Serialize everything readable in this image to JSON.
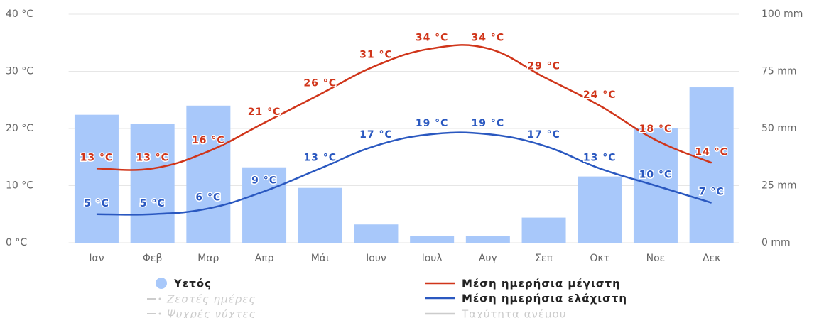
{
  "chart_data": {
    "type": "bar",
    "categories": [
      "Ιαν",
      "Φεβ",
      "Μαρ",
      "Απρ",
      "Μάι",
      "Ιουν",
      "Ιουλ",
      "Αυγ",
      "Σεπ",
      "Οκτ",
      "Νοε",
      "Δεκ"
    ],
    "ylim": [
      0,
      40
    ],
    "yticks": [
      {
        "value": 0,
        "label": "0 °C"
      },
      {
        "value": 10,
        "label": "10 °C"
      },
      {
        "value": 20,
        "label": "20 °C"
      },
      {
        "value": 30,
        "label": "30 °C"
      },
      {
        "value": 40,
        "label": "40 °C"
      }
    ],
    "y2lim": [
      0,
      100
    ],
    "y2ticks": [
      {
        "value": 0,
        "label": "0 mm"
      },
      {
        "value": 25,
        "label": "25 mm"
      },
      {
        "value": 50,
        "label": "50 mm"
      },
      {
        "value": 75,
        "label": "75 mm"
      },
      {
        "value": 100,
        "label": "100 mm"
      }
    ],
    "grid": true,
    "series": [
      {
        "name": "Υετός",
        "type": "bar",
        "axis": "y2",
        "color": "#a8c8fa",
        "values": [
          56,
          52,
          60,
          33,
          24,
          8,
          3,
          3,
          11,
          29,
          50,
          68
        ]
      },
      {
        "name": "Μέση ημερήσια μέγιστη",
        "type": "line",
        "color": "#d0351a",
        "values": [
          13,
          13,
          16,
          21,
          26,
          31,
          34,
          34,
          29,
          24,
          18,
          14
        ],
        "value_labels": [
          "13 °C",
          "13 °C",
          "16 °C",
          "21 °C",
          "26 °C",
          "31 °C",
          "34 °C",
          "34 °C",
          "29 °C",
          "24 °C",
          "18 °C",
          "14 °C"
        ]
      },
      {
        "name": "Μέση ημερήσια ελάχιστη",
        "type": "line",
        "color": "#2a58c0",
        "values": [
          5,
          5,
          6,
          9,
          13,
          17,
          19,
          19,
          17,
          13,
          10,
          7
        ],
        "value_labels": [
          "5 °C",
          "5 °C",
          "6 °C",
          "9 °C",
          "13 °C",
          "17 °C",
          "19 °C",
          "19 °C",
          "17 °C",
          "13 °C",
          "10 °C",
          "7 °C"
        ]
      }
    ],
    "inactive_legend": [
      "Ζεστές ημέρες",
      "Ψυχρές νύχτες",
      "Ταχύτητα ανέμου"
    ]
  }
}
